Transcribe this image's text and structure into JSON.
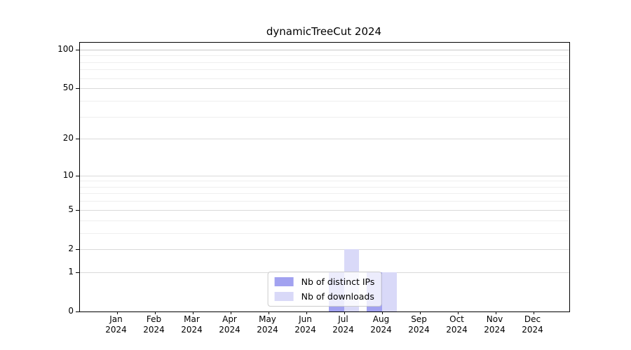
{
  "title": "dynamicTreeCut 2024",
  "chart_data": {
    "type": "bar",
    "title": "dynamicTreeCut 2024",
    "x_months": [
      "Jan",
      "Feb",
      "Mar",
      "Apr",
      "May",
      "Jun",
      "Jul",
      "Aug",
      "Sep",
      "Oct",
      "Nov",
      "Dec"
    ],
    "x_year": "2024",
    "series": [
      {
        "name": "Nb of distinct IPs",
        "color": "#a2a2f0",
        "values": [
          0,
          0,
          0,
          0,
          0,
          0,
          1,
          1,
          0,
          0,
          0,
          0
        ]
      },
      {
        "name": "Nb of downloads",
        "color": "#d9d9f8",
        "values": [
          0,
          0,
          0,
          0,
          0,
          0,
          2,
          1,
          0,
          0,
          0,
          0
        ]
      }
    ],
    "y_ticks": [
      0,
      1,
      2,
      5,
      10,
      20,
      50,
      100
    ],
    "y_minor_gridlines": [
      3,
      4,
      6,
      7,
      8,
      9,
      30,
      40,
      60,
      70,
      80,
      90
    ],
    "y_scale": "log10(1+y)",
    "ylim": [
      0,
      113
    ],
    "xlabel": "",
    "ylabel": "",
    "grid": true,
    "legend_position": "inside-bottom-center"
  },
  "legend": {
    "items": [
      {
        "label": "Nb of distinct IPs",
        "color": "#a2a2f0"
      },
      {
        "label": "Nb of downloads",
        "color": "#d9d9f8"
      }
    ]
  }
}
